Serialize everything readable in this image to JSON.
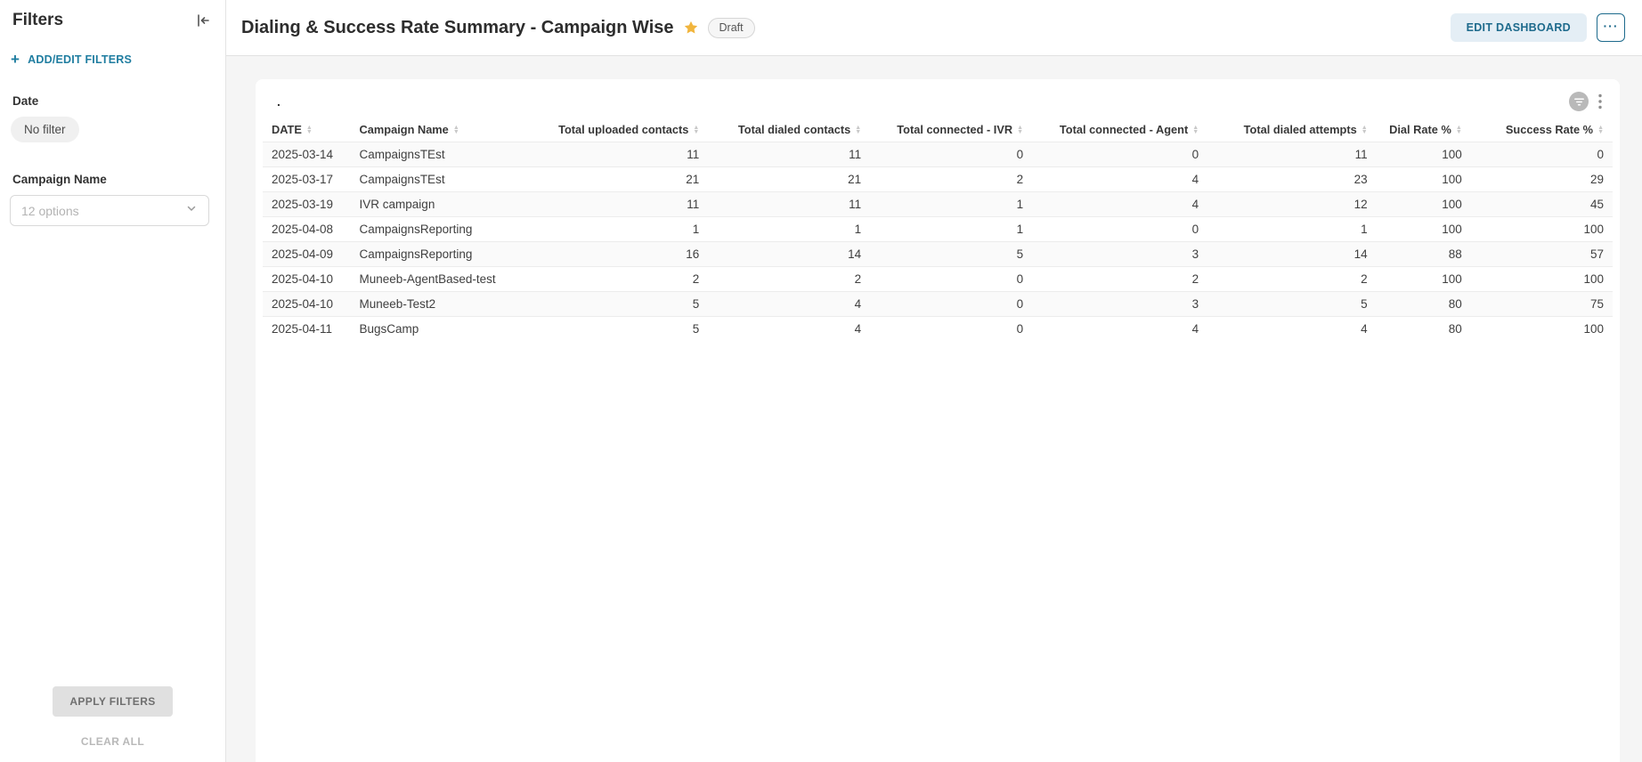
{
  "colors": {
    "accent_teal": "#1f7da0",
    "edit_button_bg": "#e4eef5",
    "edit_button_text": "#1d6a8c",
    "star_gold": "#f1b53d",
    "row_stripe": "#fafafa"
  },
  "sidebar": {
    "title": "Filters",
    "add_edit_label": "ADD/EDIT FILTERS",
    "date_label": "Date",
    "date_filter_value": "No filter",
    "campaign_label": "Campaign Name",
    "campaign_placeholder": "12 options",
    "apply_label": "APPLY FILTERS",
    "clear_label": "CLEAR ALL"
  },
  "header": {
    "title": "Dialing & Success Rate Summary - Campaign Wise",
    "badge": "Draft",
    "edit_button": "EDIT DASHBOARD",
    "more_button": "···"
  },
  "widget": {
    "title": ".",
    "columns": [
      {
        "key": "date",
        "label": "DATE"
      },
      {
        "key": "campaign-name",
        "label": "Campaign Name"
      },
      {
        "key": "total-uploaded-contacts",
        "label": "Total uploaded contacts"
      },
      {
        "key": "total-dialed-contacts",
        "label": "Total dialed contacts"
      },
      {
        "key": "total-connected-ivr",
        "label": "Total connected - IVR"
      },
      {
        "key": "total-connected-agent",
        "label": "Total connected - Agent"
      },
      {
        "key": "total-dialed-attempts",
        "label": "Total dialed attempts"
      },
      {
        "key": "dial-rate",
        "label": "Dial Rate %"
      },
      {
        "key": "success-rate",
        "label": "Success Rate %"
      }
    ],
    "rows": [
      [
        "2025-03-14",
        "CampaignsTEst",
        "11",
        "11",
        "0",
        "0",
        "11",
        "100",
        "0"
      ],
      [
        "2025-03-17",
        "CampaignsTEst",
        "21",
        "21",
        "2",
        "4",
        "23",
        "100",
        "29"
      ],
      [
        "2025-03-19",
        "IVR campaign",
        "11",
        "11",
        "1",
        "4",
        "12",
        "100",
        "45"
      ],
      [
        "2025-04-08",
        "CampaignsReporting",
        "1",
        "1",
        "1",
        "0",
        "1",
        "100",
        "100"
      ],
      [
        "2025-04-09",
        "CampaignsReporting",
        "16",
        "14",
        "5",
        "3",
        "14",
        "88",
        "57"
      ],
      [
        "2025-04-10",
        "Muneeb-AgentBased-test",
        "2",
        "2",
        "0",
        "2",
        "2",
        "100",
        "100"
      ],
      [
        "2025-04-10",
        "Muneeb-Test2",
        "5",
        "4",
        "0",
        "3",
        "5",
        "80",
        "75"
      ],
      [
        "2025-04-11",
        "BugsCamp",
        "5",
        "4",
        "0",
        "4",
        "4",
        "80",
        "100"
      ]
    ]
  }
}
